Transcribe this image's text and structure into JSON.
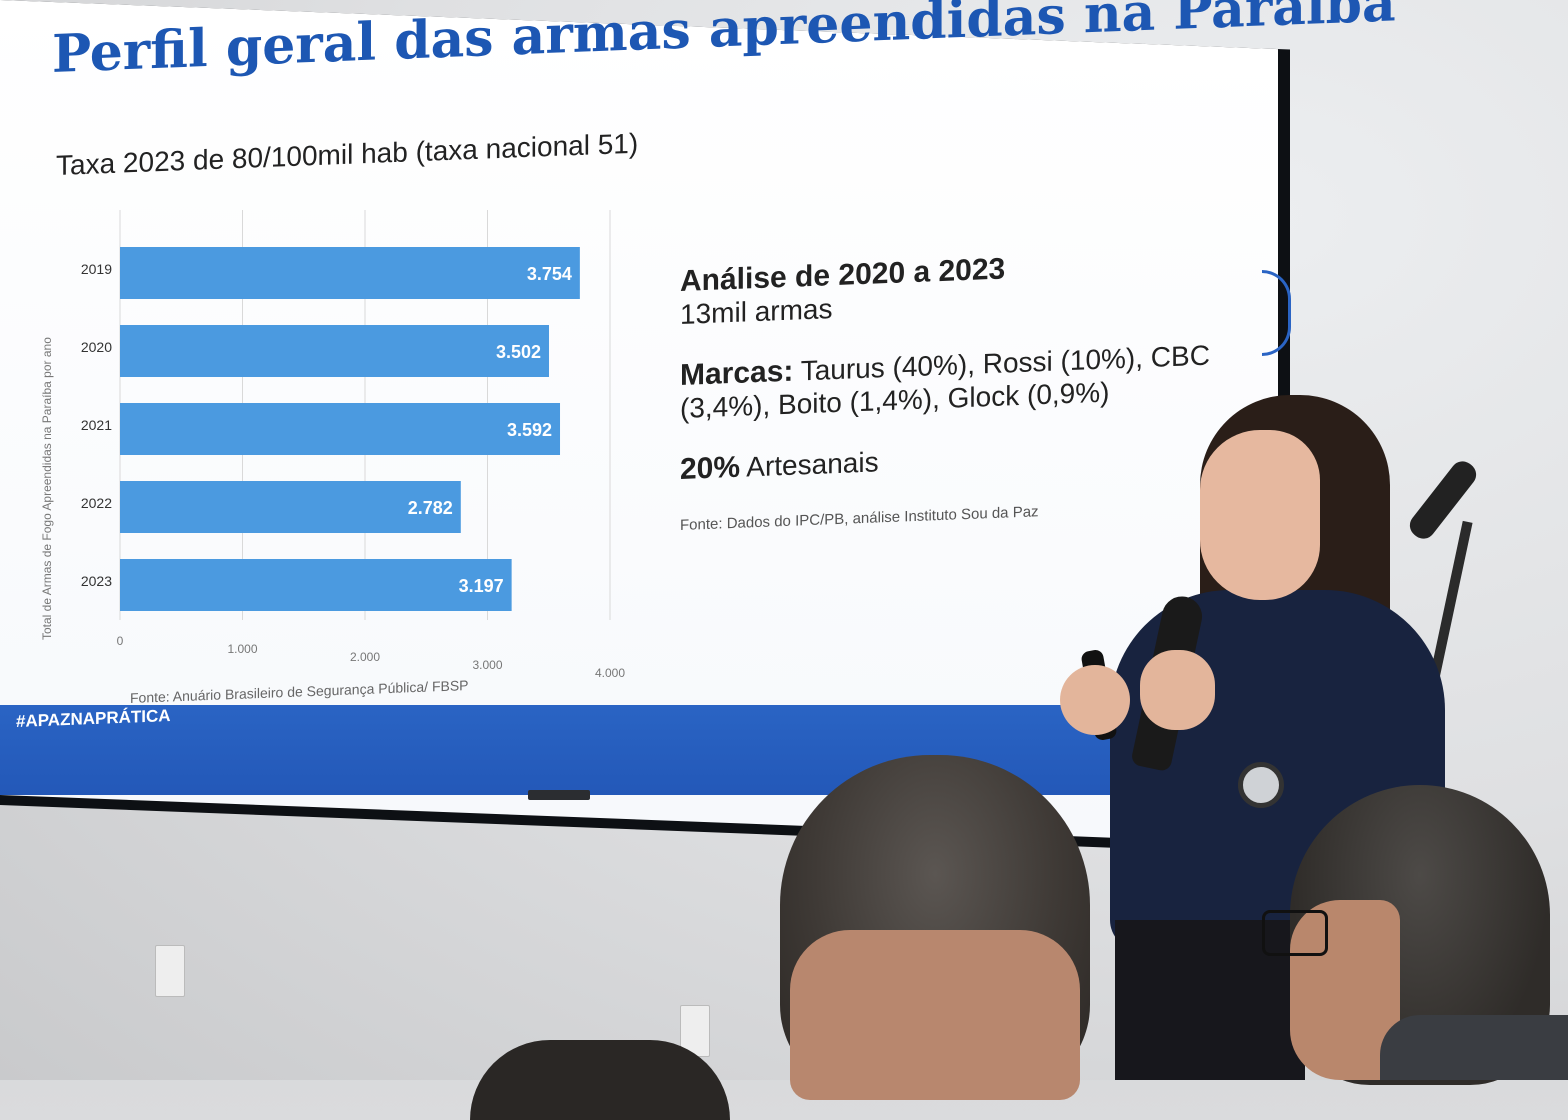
{
  "slide": {
    "title": "Perfil geral das armas apreendidas na Paraíba",
    "subtitle": "Taxa 2023 de 80/100mil hab (taxa nacional 51)",
    "y_axis_label": "Total de Armas de Fogo Apreendidas na Paraíba por ano",
    "chart_source": "Fonte: Anuário Brasileiro de Segurança Pública/ FBSP",
    "analysis_title": "Análise de 2020 a 2023",
    "analysis_value": "13mil armas",
    "brands_label": "Marcas:",
    "brands_text": "Taurus (40%), Rossi (10%), CBC (3,4%), Boito (1,4%), Glock (0,9%)",
    "artisan_pct": "20%",
    "artisan_label": "Artesanais",
    "data_source": "Fonte: Dados do IPC/PB, análise Instituto Sou da Paz",
    "hashtag": "#APAZNAPRÁTICA"
  },
  "chart_data": {
    "type": "bar",
    "orientation": "horizontal",
    "categories": [
      "2019",
      "2020",
      "2021",
      "2022",
      "2023"
    ],
    "values": [
      3754,
      3502,
      3592,
      2782,
      3197
    ],
    "value_labels": [
      "3.754",
      "3.502",
      "3.592",
      "2.782",
      "3.197"
    ],
    "x_ticks": [
      "0",
      "1.000",
      "2.000",
      "3.000",
      "4.000"
    ],
    "xlim": [
      0,
      4000
    ],
    "bar_color": "#4b9ae0",
    "grid": true
  },
  "colors": {
    "title_blue": "#1d57b3",
    "bar_blue": "#2a64c4"
  }
}
